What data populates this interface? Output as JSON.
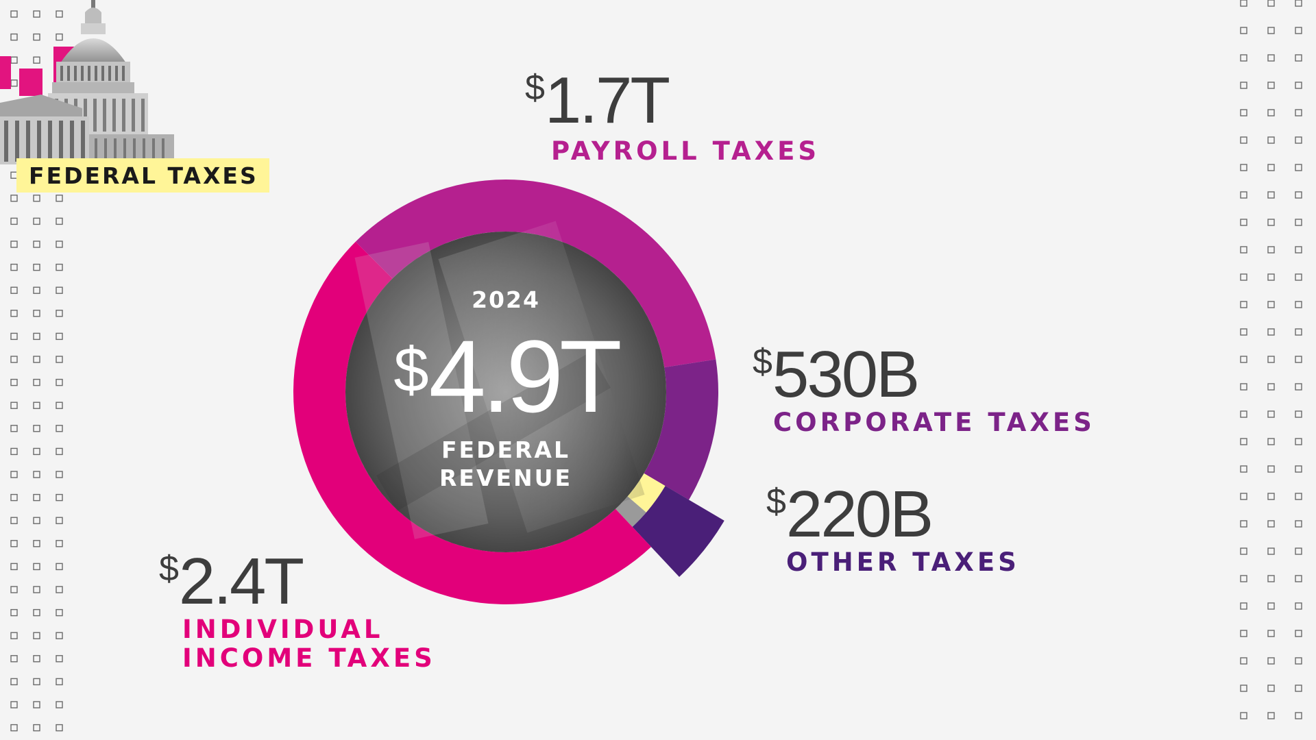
{
  "header": {
    "badge": "FEDERAL TAXES"
  },
  "center": {
    "year": "2024",
    "total_currency": "$",
    "total_value": "4.9T",
    "label_line1": "FEDERAL",
    "label_line2": "REVENUE"
  },
  "chart_data": {
    "type": "pie",
    "subtitle": "2024",
    "total": "$4.9T",
    "total_label": "FEDERAL REVENUE",
    "units": "USD",
    "slices": [
      {
        "label": "INDIVIDUAL INCOME TAXES",
        "value": 2.4,
        "display": "2.4T",
        "color": "#e2007a"
      },
      {
        "label": "PAYROLL TAXES",
        "value": 1.7,
        "display": "1.7T",
        "color": "#b5208f"
      },
      {
        "label": "CORPORATE TAXES",
        "value": 0.53,
        "display": "530B",
        "color": "#7c2388"
      },
      {
        "label": "OTHER TAXES",
        "value": 0.22,
        "display": "220B",
        "color": "#4a1f78"
      }
    ],
    "currency_symbol": "$"
  },
  "labels": {
    "payroll": {
      "amount": "1.7T",
      "line1": "PAYROLL TAXES"
    },
    "corporate": {
      "amount": "530B",
      "line1": "CORPORATE TAXES"
    },
    "other": {
      "amount": "220B",
      "line1": "OTHER TAXES"
    },
    "individual": {
      "amount": "2.4T",
      "line1": "INDIVIDUAL",
      "line2": "INCOME TAXES"
    }
  },
  "colors": {
    "background": "#f4f4f4",
    "badge": "#fff598",
    "individual": "#e2007a",
    "payroll": "#b5208f",
    "corporate": "#7c2388",
    "other": "#4a1f78",
    "highlight_yellow": "#fff598",
    "gray": "#9a9a9a"
  },
  "icons": [
    "capitol-building-icon",
    "dot-grid-pattern"
  ]
}
